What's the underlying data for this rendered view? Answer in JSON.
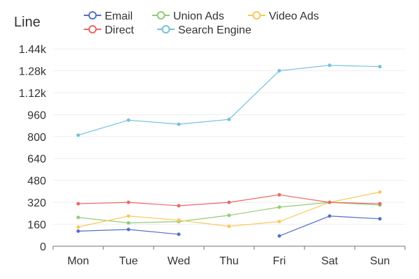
{
  "chart_data": {
    "type": "line",
    "title": "Line",
    "categories": [
      "Mon",
      "Tue",
      "Wed",
      "Thu",
      "Fri",
      "Sat",
      "Sun"
    ],
    "ylim": [
      0,
      1440
    ],
    "yticks": [
      0,
      160,
      320,
      480,
      640,
      800,
      960,
      1120,
      1280,
      1440
    ],
    "ytick_labels": [
      "0",
      "160",
      "320",
      "480",
      "640",
      "800",
      "960",
      "1.12k",
      "1.28k",
      "1.44k"
    ],
    "grid": true,
    "legend": "top",
    "series": [
      {
        "name": "Email",
        "color": "#5470c6",
        "values": [
          110,
          122,
          87,
          null,
          75,
          220,
          200
        ]
      },
      {
        "name": "Union Ads",
        "color": "#91cc75",
        "values": [
          210,
          170,
          180,
          225,
          285,
          320,
          300
        ]
      },
      {
        "name": "Video Ads",
        "color": "#fac858",
        "values": [
          140,
          220,
          190,
          145,
          180,
          320,
          395
        ]
      },
      {
        "name": "Direct",
        "color": "#ee6666",
        "values": [
          310,
          320,
          295,
          320,
          375,
          320,
          310
        ]
      },
      {
        "name": "Search Engine",
        "color": "#73c0de",
        "values": [
          810,
          920,
          890,
          925,
          1280,
          1320,
          1310
        ]
      }
    ]
  }
}
